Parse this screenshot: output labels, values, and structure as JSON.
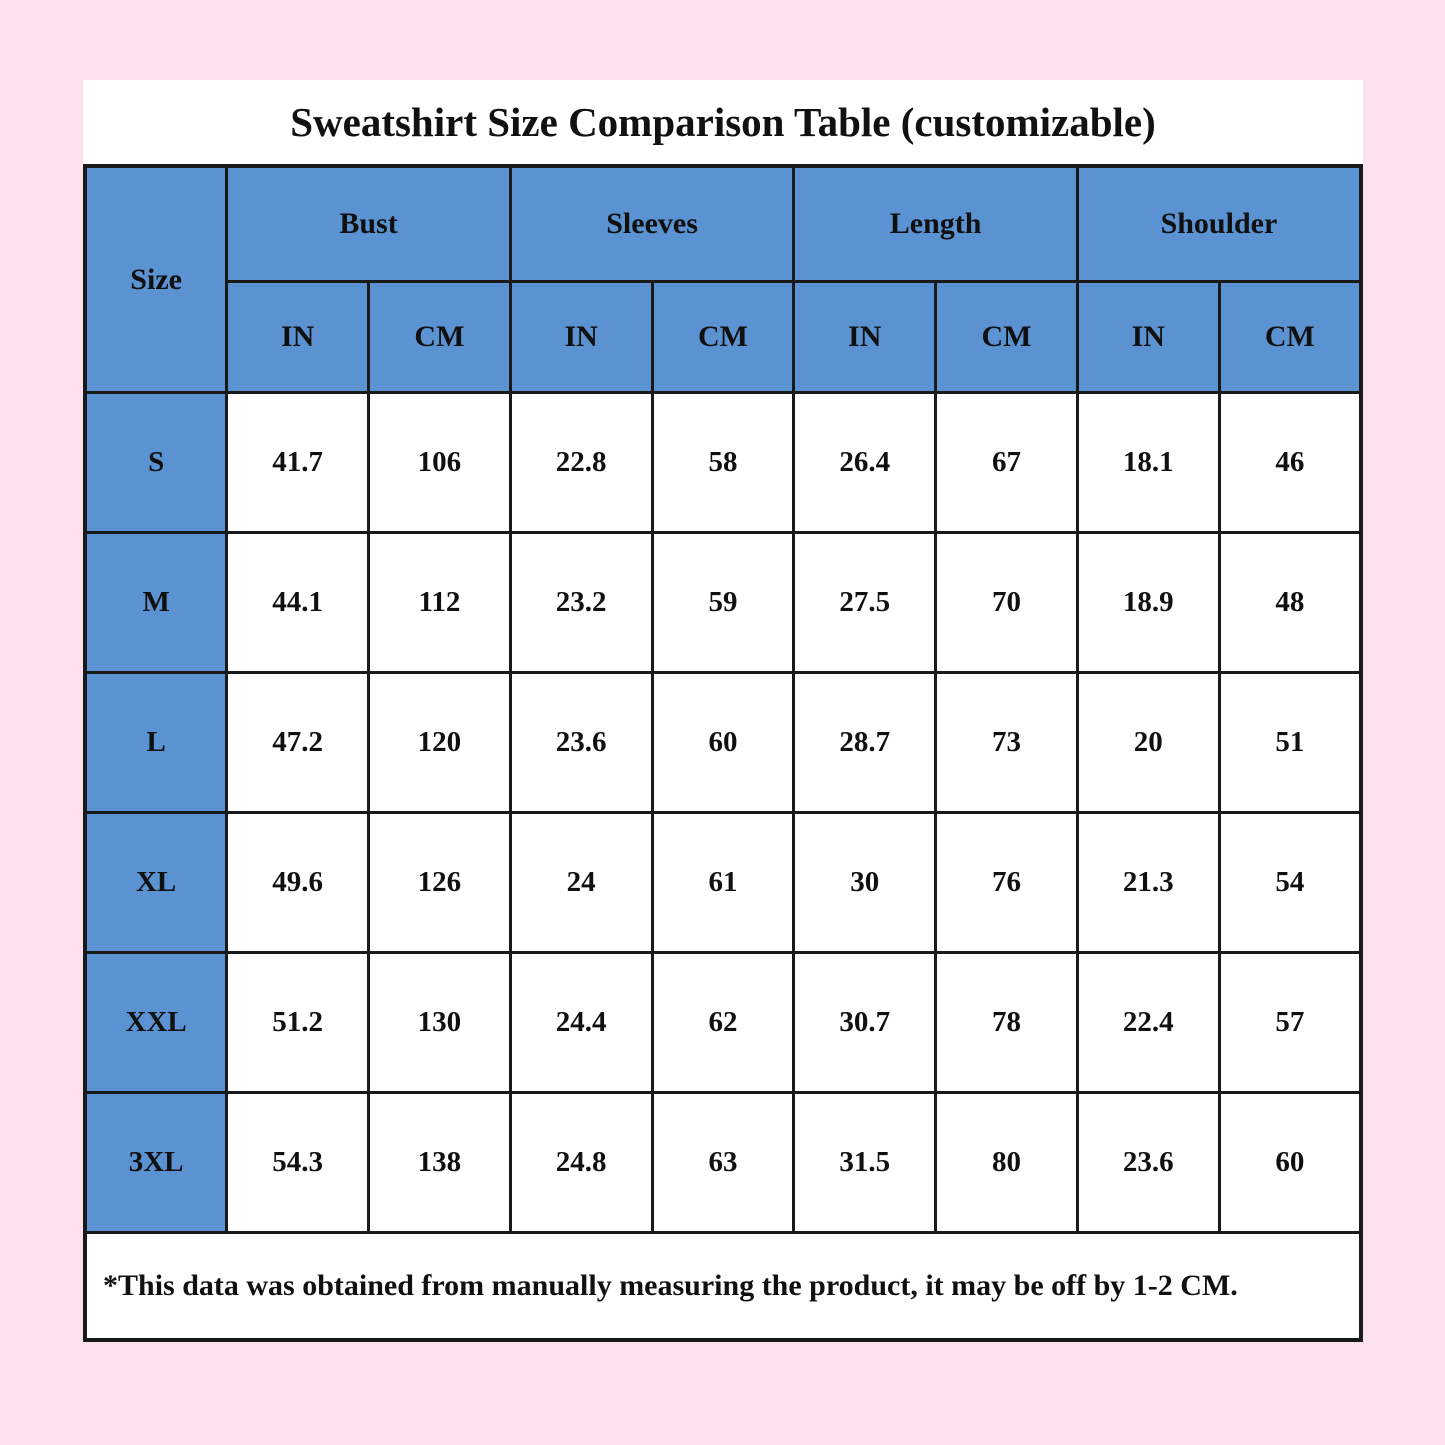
{
  "colors": {
    "page_background": "#fce0eb",
    "panel_background": "#ffffff",
    "header_blue": "#5b92d1",
    "grid_border": "#1a1a1a",
    "text": "#101010"
  },
  "chart_data": {
    "type": "table",
    "title": "Sweatshirt Size Comparison Table (customizable)",
    "row_header": "Size",
    "column_groups": [
      "Bust",
      "Sleeves",
      "Length",
      "Shoulder"
    ],
    "unit_subcolumns": [
      "IN",
      "CM"
    ],
    "rows": [
      {
        "size": "S",
        "values": [
          "41.7",
          "106",
          "22.8",
          "58",
          "26.4",
          "67",
          "18.1",
          "46"
        ]
      },
      {
        "size": "M",
        "values": [
          "44.1",
          "112",
          "23.2",
          "59",
          "27.5",
          "70",
          "18.9",
          "48"
        ]
      },
      {
        "size": "L",
        "values": [
          "47.2",
          "120",
          "23.6",
          "60",
          "28.7",
          "73",
          "20",
          "51"
        ]
      },
      {
        "size": "XL",
        "values": [
          "49.6",
          "126",
          "24",
          "61",
          "30",
          "76",
          "21.3",
          "54"
        ]
      },
      {
        "size": "XXL",
        "values": [
          "51.2",
          "130",
          "24.4",
          "62",
          "30.7",
          "78",
          "22.4",
          "57"
        ]
      },
      {
        "size": "3XL",
        "values": [
          "54.3",
          "138",
          "24.8",
          "63",
          "31.5",
          "80",
          "23.6",
          "60"
        ]
      }
    ],
    "footnote": "*This data was obtained from manually measuring the product, it may be off by 1-2 CM."
  }
}
